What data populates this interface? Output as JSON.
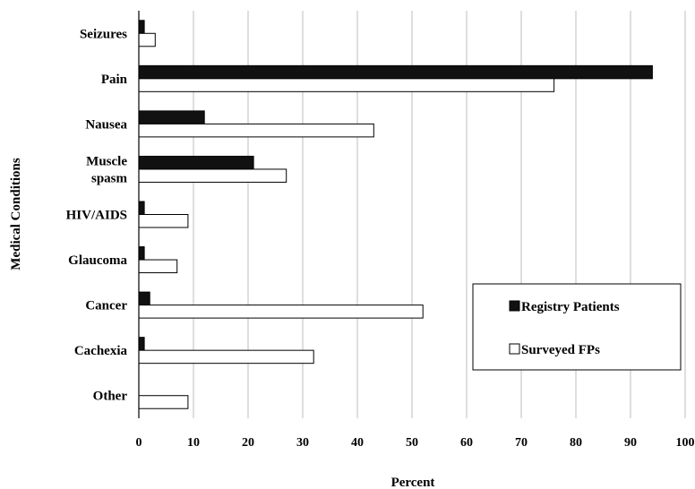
{
  "chart_data": {
    "type": "bar",
    "orientation": "horizontal",
    "categories": [
      "Seizures",
      "Pain",
      "Nausea",
      "Muscle spasm",
      "HIV/AIDS",
      "Glaucoma",
      "Cancer",
      "Cachexia",
      "Other"
    ],
    "category_lines": [
      [
        "Seizures"
      ],
      [
        "Pain"
      ],
      [
        "Nausea"
      ],
      [
        "Muscle",
        "spasm"
      ],
      [
        "HIV/AIDS"
      ],
      [
        "Glaucoma"
      ],
      [
        "Cancer"
      ],
      [
        "Cachexia"
      ],
      [
        "Other"
      ]
    ],
    "series": [
      {
        "name": "Registry Patients",
        "color": "#111111",
        "values": [
          1,
          94,
          12,
          21,
          1,
          1,
          2,
          1,
          0
        ]
      },
      {
        "name": "Surveyed FPs",
        "color": "#ffffff",
        "values": [
          3,
          76,
          43,
          27,
          9,
          7,
          52,
          32,
          9
        ]
      }
    ],
    "xlabel": "Percent",
    "ylabel": "Medical Conditions",
    "xlim": [
      0,
      100
    ],
    "xticks": [
      0,
      10,
      20,
      30,
      40,
      50,
      60,
      70,
      80,
      90,
      100
    ],
    "grid": true,
    "legend_position": "lower-right"
  }
}
